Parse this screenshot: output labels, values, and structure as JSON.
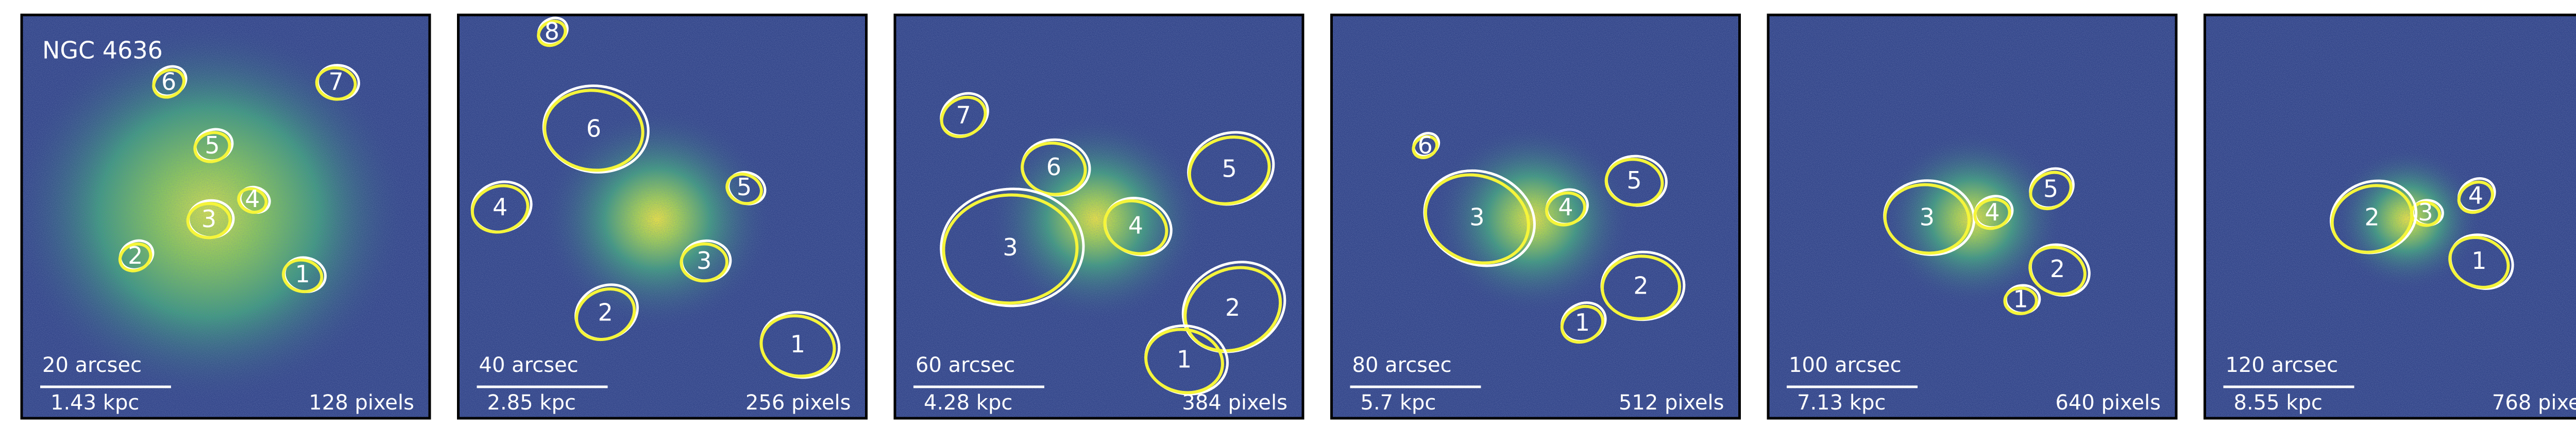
{
  "panels": [
    {
      "title": "NGC 4636",
      "scale_arcsec": "20 arcsec",
      "scale_kpc": "1.43 kpc",
      "size": "128 pixels",
      "regions": [
        "6",
        "7",
        "5",
        "4",
        "3",
        "2",
        "1"
      ]
    },
    {
      "scale_arcsec": "40 arcsec",
      "scale_kpc": "2.85 kpc",
      "size": "256 pixels",
      "regions": [
        "8",
        "6",
        "4",
        "5",
        "3",
        "2",
        "1"
      ]
    },
    {
      "scale_arcsec": "60 arcsec",
      "scale_kpc": "4.28 kpc",
      "size": "384 pixels",
      "regions": [
        "7",
        "6",
        "5",
        "4",
        "3",
        "2",
        "1"
      ]
    },
    {
      "scale_arcsec": "80 arcsec",
      "scale_kpc": "5.7 kpc",
      "size": "512 pixels",
      "regions": [
        "6",
        "5",
        "4",
        "3",
        "2",
        "1"
      ]
    },
    {
      "scale_arcsec": "100 arcsec",
      "scale_kpc": "7.13 kpc",
      "size": "640 pixels",
      "regions": [
        "5",
        "3",
        "4",
        "2",
        "1"
      ]
    },
    {
      "scale_arcsec": "120 arcsec",
      "scale_kpc": "8.55 kpc",
      "size": "768 pixels",
      "regions": [
        "4",
        "3",
        "2",
        "1"
      ]
    }
  ]
}
